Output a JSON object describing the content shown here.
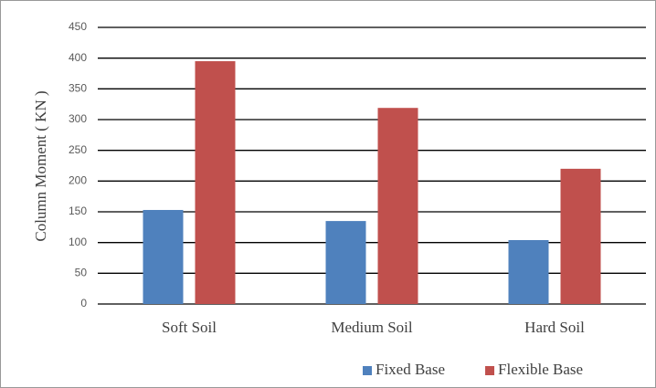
{
  "chart_data": {
    "type": "bar",
    "y_label": "Column Moment ( KN )",
    "categories": [
      "Soft Soil",
      "Medium Soil",
      "Hard Soil"
    ],
    "series": [
      {
        "name": "Fixed Base",
        "color": "#4f81bd",
        "values": [
          153,
          135,
          104
        ]
      },
      {
        "name": "Flexible Base",
        "color": "#c0504d",
        "values": [
          395,
          319,
          220
        ]
      }
    ],
    "ylim": [
      0,
      450
    ],
    "yticks": [
      0,
      50,
      100,
      150,
      200,
      250,
      300,
      350,
      400,
      450
    ],
    "grid": true,
    "legend": "bottom-right"
  }
}
